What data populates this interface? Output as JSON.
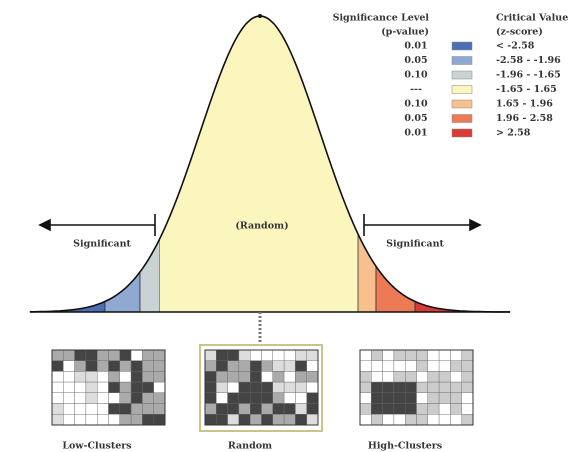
{
  "legend": {
    "p_header": [
      "Significance Level",
      "(p-value)"
    ],
    "z_header": [
      "Critical Value",
      "(z-score)"
    ],
    "rows": [
      {
        "p": "0.01",
        "z": "< -2.58",
        "color": "#4a6fb5"
      },
      {
        "p": "0.05",
        "z": "-2.58 - -1.96",
        "color": "#8fa9d3"
      },
      {
        "p": "0.10",
        "z": "-1.96 - -1.65",
        "color": "#c9d3d6"
      },
      {
        "p": "---",
        "z": "-1.65 - 1.65",
        "color": "#fbf6bd"
      },
      {
        "p": "0.10",
        "z": "1.65 - 1.96",
        "color": "#f6c08f"
      },
      {
        "p": "0.05",
        "z": "1.96 - 2.58",
        "color": "#ec7a55"
      },
      {
        "p": "0.01",
        "z": "> 2.58",
        "color": "#d93a36"
      }
    ]
  },
  "labels": {
    "left": "Significant",
    "center": "(Random)",
    "right": "Significant"
  },
  "maps": [
    "Low-Clusters",
    "Random",
    "High-Clusters"
  ]
}
